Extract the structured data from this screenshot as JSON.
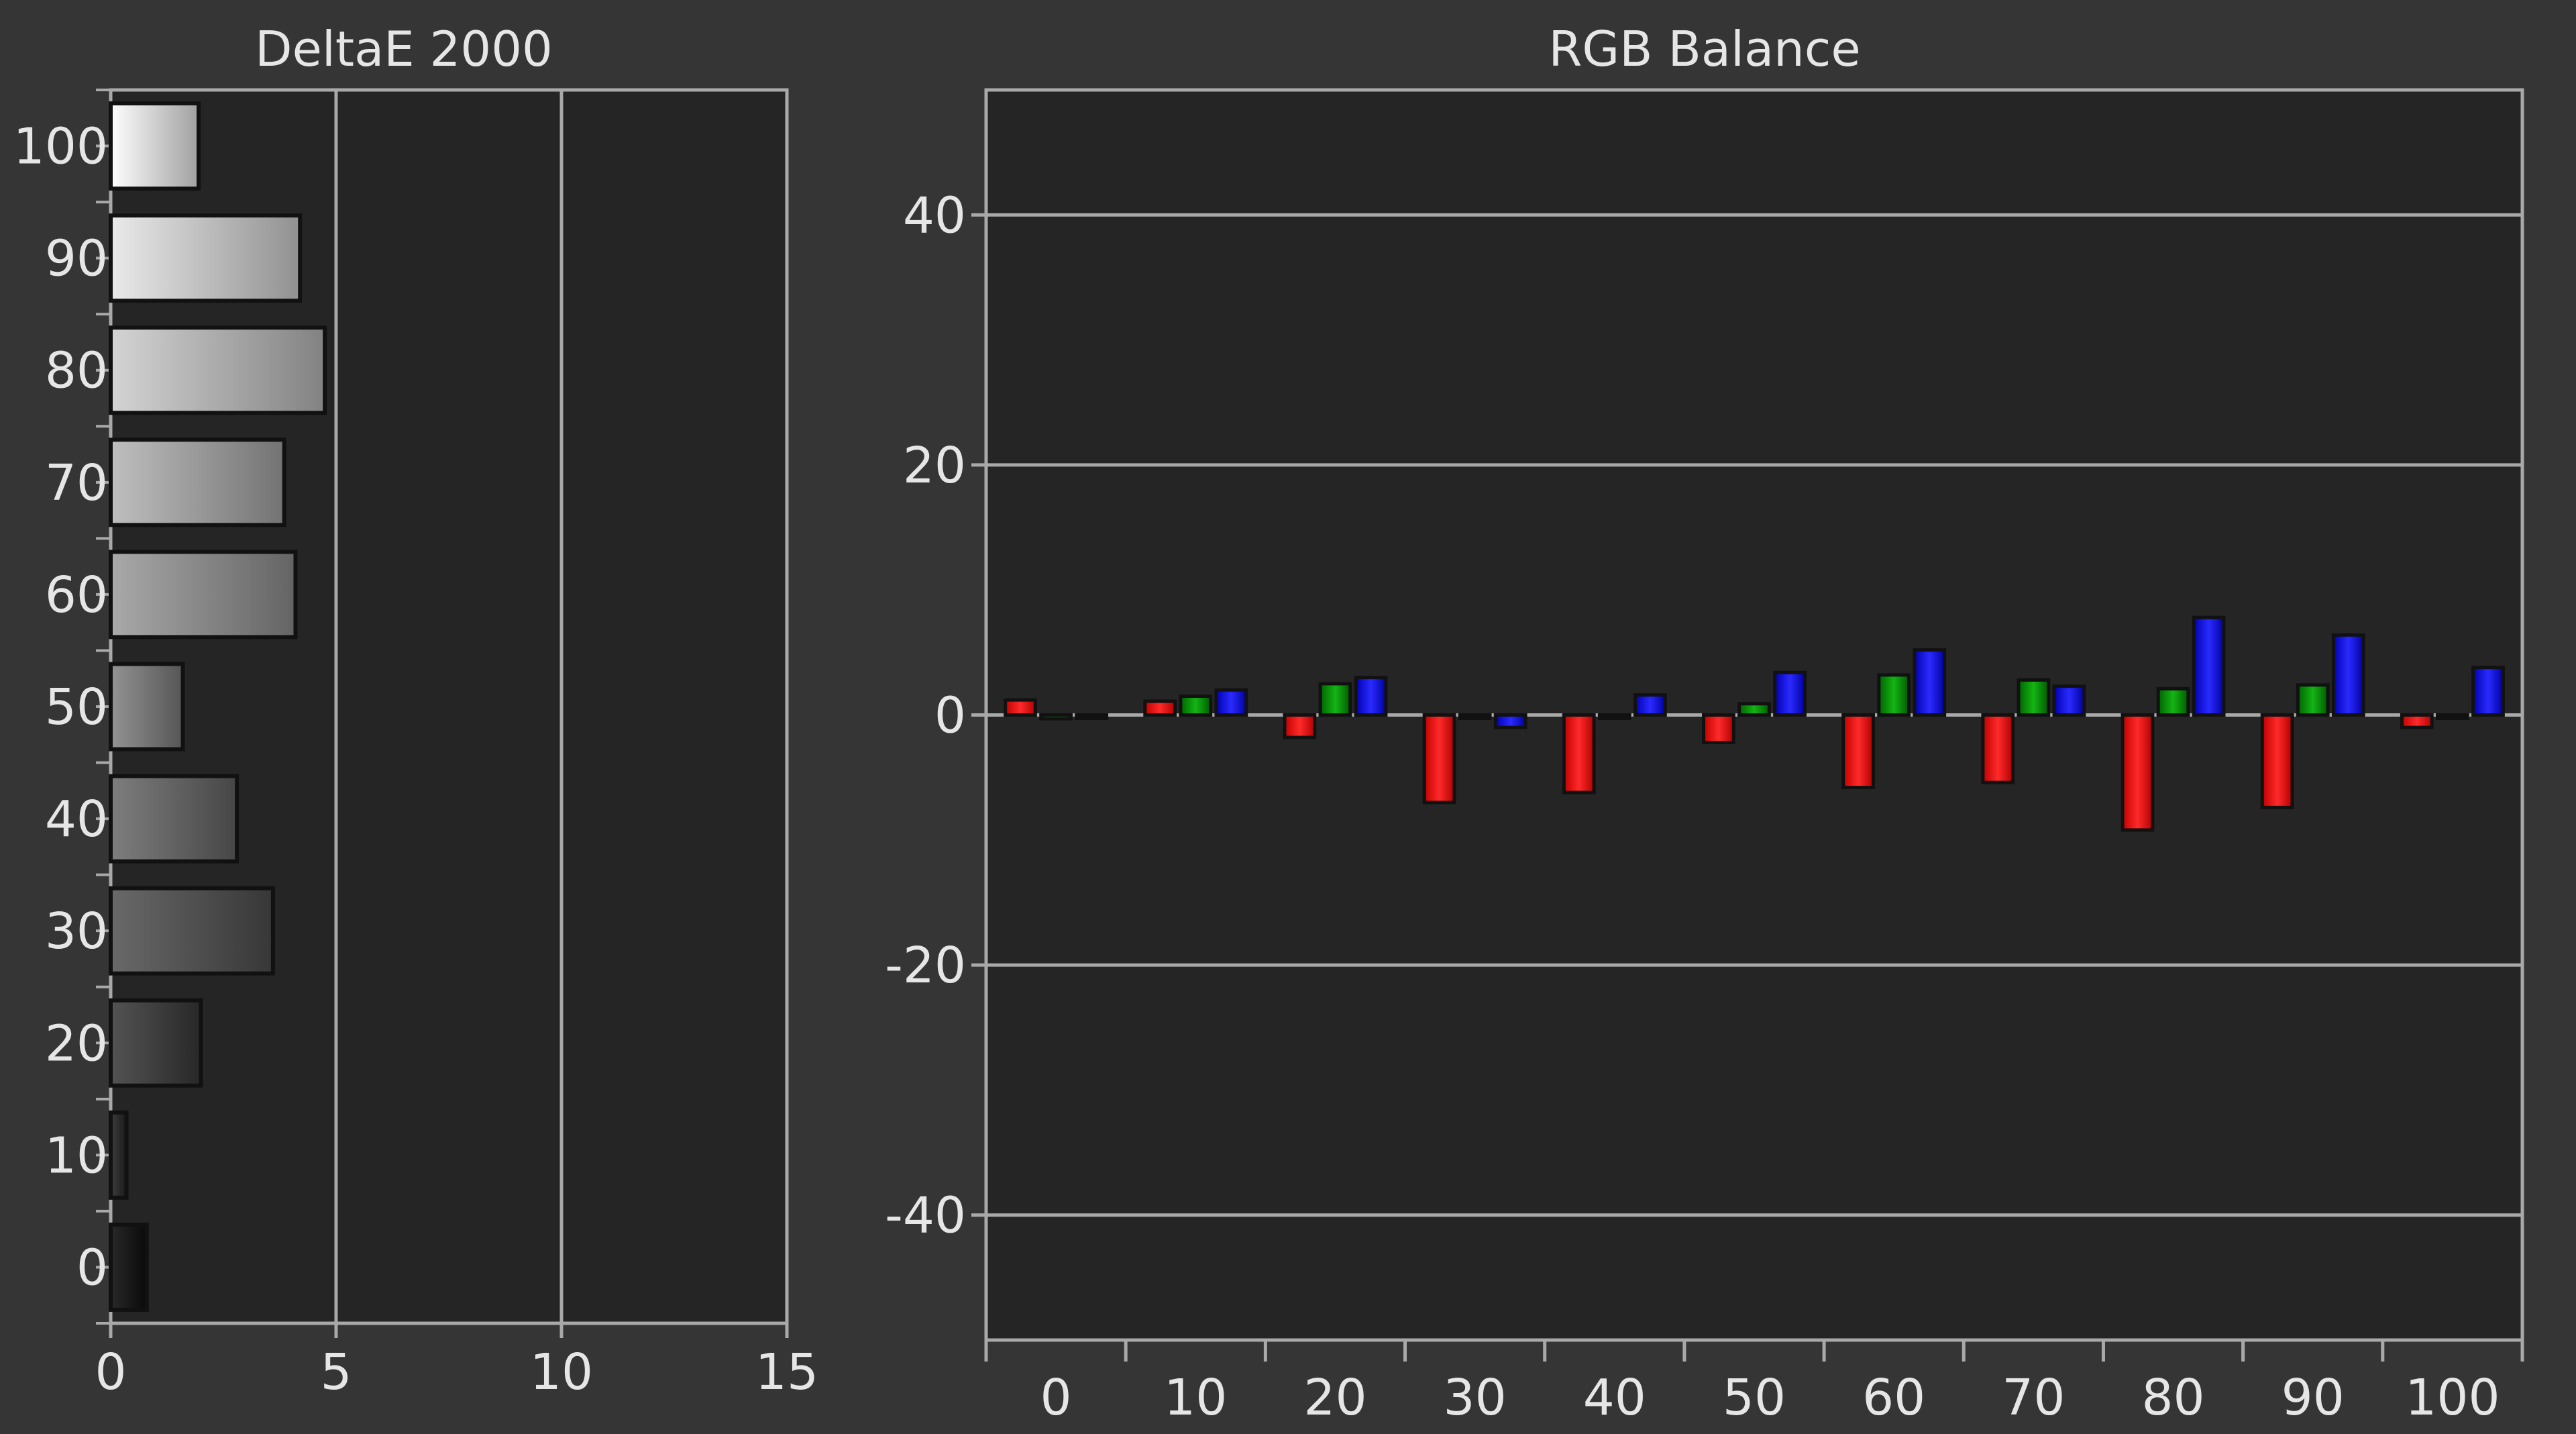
{
  "theme": {
    "background": "#353535",
    "plot_background": "#252525",
    "frame": "#a9a9a9",
    "text": "#e6e6e6"
  },
  "chart_data": [
    {
      "type": "bar",
      "orientation": "horizontal",
      "title": "DeltaE 2000",
      "xlabel": "",
      "ylabel": "",
      "categories": [
        "0",
        "10",
        "20",
        "30",
        "40",
        "50",
        "60",
        "70",
        "80",
        "90",
        "100"
      ],
      "values": [
        0.8,
        0.35,
        2.0,
        3.6,
        2.8,
        1.6,
        4.1,
        3.85,
        4.75,
        4.2,
        1.95
      ],
      "xlim": [
        0,
        15
      ],
      "x_ticks": [
        "0",
        "5",
        "10",
        "15"
      ],
      "grid": true,
      "bar_style": "grayscale gradient per stimulus level"
    },
    {
      "type": "bar",
      "title": "RGB Balance",
      "xlabel": "",
      "ylabel": "",
      "categories": [
        "0",
        "10",
        "20",
        "30",
        "40",
        "50",
        "60",
        "70",
        "80",
        "90",
        "100"
      ],
      "ylim": [
        -50,
        50
      ],
      "y_ticks": [
        "40",
        "20",
        "0",
        "-20",
        "-40"
      ],
      "grid": true,
      "legend": "none",
      "series": [
        {
          "color": "#ff0000",
          "values": [
            1.2,
            1.1,
            -1.8,
            -7.0,
            -6.2,
            -2.2,
            -5.8,
            -5.4,
            -9.2,
            -7.4,
            -1.0
          ]
        },
        {
          "color": "#00a000",
          "values": [
            -0.3,
            1.5,
            2.5,
            0.0,
            0.0,
            0.9,
            3.2,
            2.8,
            2.1,
            2.4,
            -0.2
          ]
        },
        {
          "color": "#1010ff",
          "values": [
            0.0,
            2.0,
            3.0,
            -1.0,
            1.6,
            3.4,
            5.2,
            2.3,
            7.8,
            6.4,
            3.8
          ]
        }
      ]
    }
  ]
}
